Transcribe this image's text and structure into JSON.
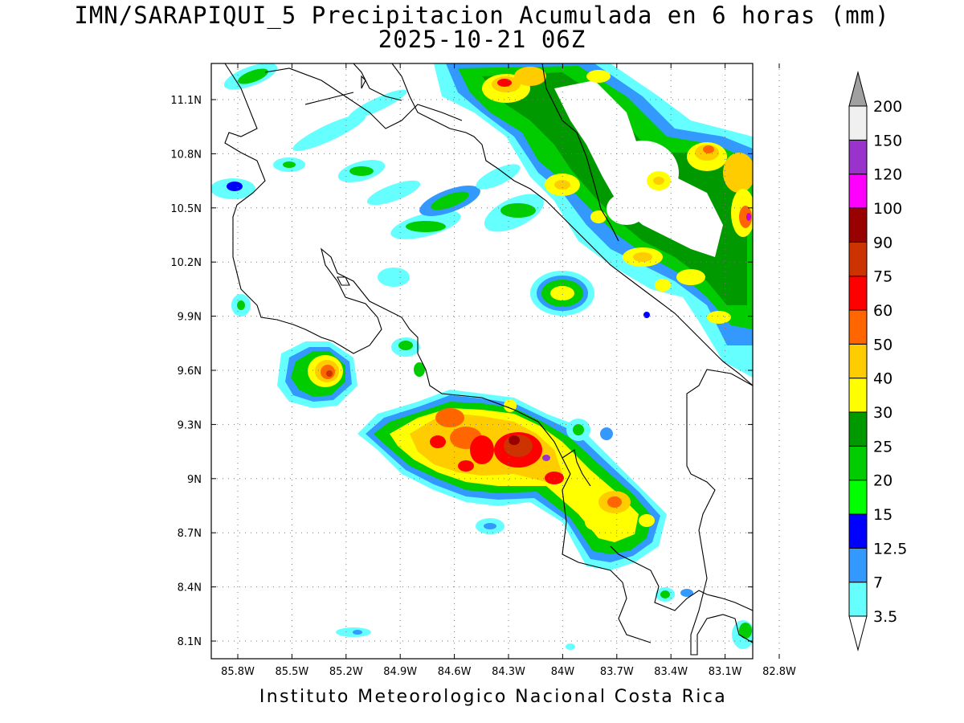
{
  "title_line1": "IMN/SARAPIQUI_5 Precipitacion Acumulada en 6 horas (mm)",
  "title_line2": "2025-10-21 06Z",
  "footer": "Instituto Meteorologico Nacional Costa Rica",
  "lon_ticks": [
    "85.8W",
    "85.5W",
    "85.2W",
    "84.9W",
    "84.6W",
    "84.3W",
    "84W",
    "83.7W",
    "83.4W",
    "83.1W",
    "82.8W"
  ],
  "lat_ticks": [
    "11.1N",
    "10.8N",
    "10.5N",
    "10.2N",
    "9.9N",
    "9.6N",
    "9.3N",
    "9N",
    "8.7N",
    "8.4N",
    "8.1N"
  ],
  "colorbar": {
    "labels": [
      "3.5",
      "7",
      "12.5",
      "15",
      "20",
      "25",
      "30",
      "40",
      "50",
      "60",
      "75",
      "90",
      "100",
      "120",
      "150",
      "200"
    ],
    "colors": [
      "#ffffff",
      "#66ffff",
      "#3399ff",
      "#0000ff",
      "#00ff00",
      "#00cc00",
      "#009900",
      "#ffff00",
      "#ffcc00",
      "#ff6600",
      "#ff0000",
      "#cc3300",
      "#990000",
      "#ff00ff",
      "#9933cc",
      "#f0f0f0",
      "#a0a0a0"
    ]
  }
}
